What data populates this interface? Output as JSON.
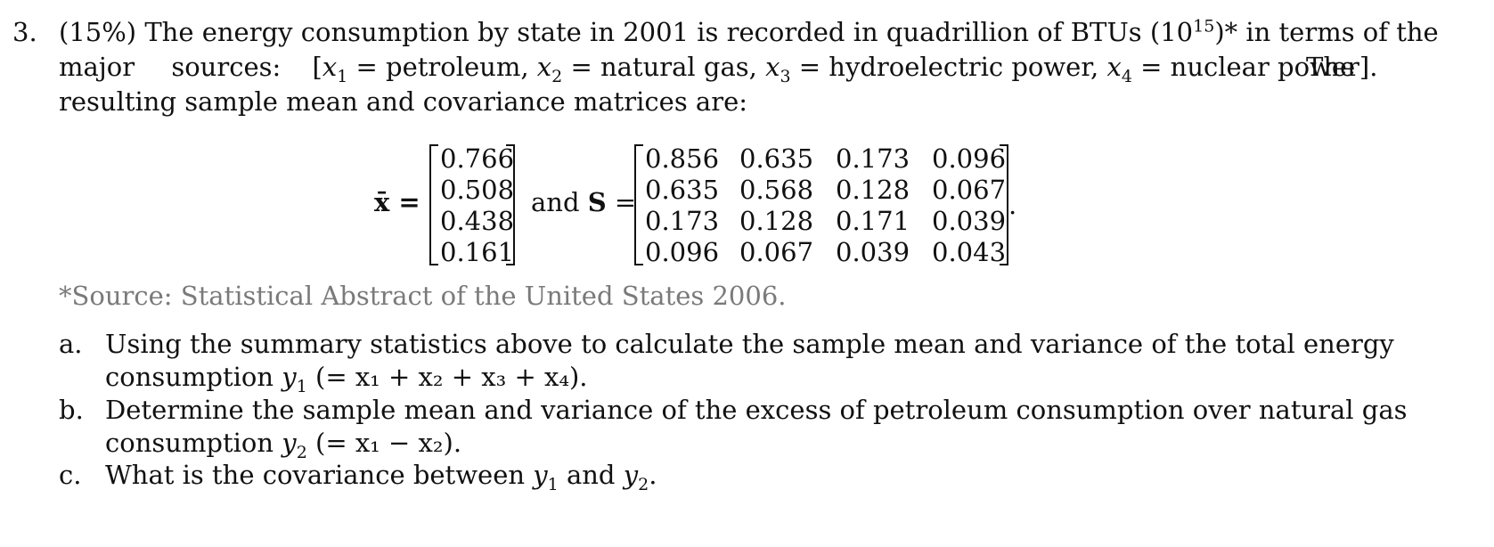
{
  "problem": {
    "number": "3.",
    "weight": "(15%)",
    "intro_a": "The energy consumption by state in 2001 is recorded in quadrillion of BTUs (10",
    "intro_exp": "15",
    "intro_b": ")* in terms of the",
    "major": "major",
    "sources": "sources:",
    "vars": {
      "open": "[",
      "x1": "x",
      "x1_sub": "1",
      "eq1": " = petroleum, ",
      "x2": "x",
      "x2_sub": "2",
      "eq2": " = natural gas, ",
      "x3": "x",
      "x3_sub": "3",
      "eq3": " = hydroelectric power, ",
      "x4": "x",
      "x4_sub": "4",
      "eq4": " = nuclear power].",
      "the": "The"
    },
    "line3": "resulting sample mean and covariance matrices are:"
  },
  "equation": {
    "xbar_label": "x̄ =",
    "and_label": "and",
    "S_label": "S",
    "eq": "=",
    "period": ".",
    "mean_vector": [
      "0.766",
      "0.508",
      "0.438",
      "0.161"
    ],
    "cov_matrix": [
      [
        "0.856",
        "0.635",
        "0.173",
        "0.096"
      ],
      [
        "0.635",
        "0.568",
        "0.128",
        "0.067"
      ],
      [
        "0.173",
        "0.128",
        "0.171",
        "0.039"
      ],
      [
        "0.096",
        "0.067",
        "0.039",
        "0.043"
      ]
    ]
  },
  "source_note": "*Source: Statistical Abstract of the United States 2006.",
  "questions": {
    "a_label": "a.",
    "a_line1": "Using the summary statistics above to calculate the sample mean and variance of the total energy",
    "a_line2_pre": "consumption ",
    "a_y": "y",
    "a_y_sub": "1",
    "a_expr": " (= x₁ + x₂ + x₃ + x₄).",
    "b_label": "b.",
    "b_line1": "Determine the sample mean and variance of the excess of petroleum consumption over natural gas",
    "b_line2_pre": "consumption ",
    "b_y": "y",
    "b_y_sub": "2",
    "b_expr": " (= x₁ − x₂).",
    "c_label": "c.",
    "c_text_pre": "What is the covariance between ",
    "c_y1": "y",
    "c_y1_sub": "1",
    "c_and": " and ",
    "c_y2": "y",
    "c_y2_sub": "2",
    "c_end": "."
  }
}
